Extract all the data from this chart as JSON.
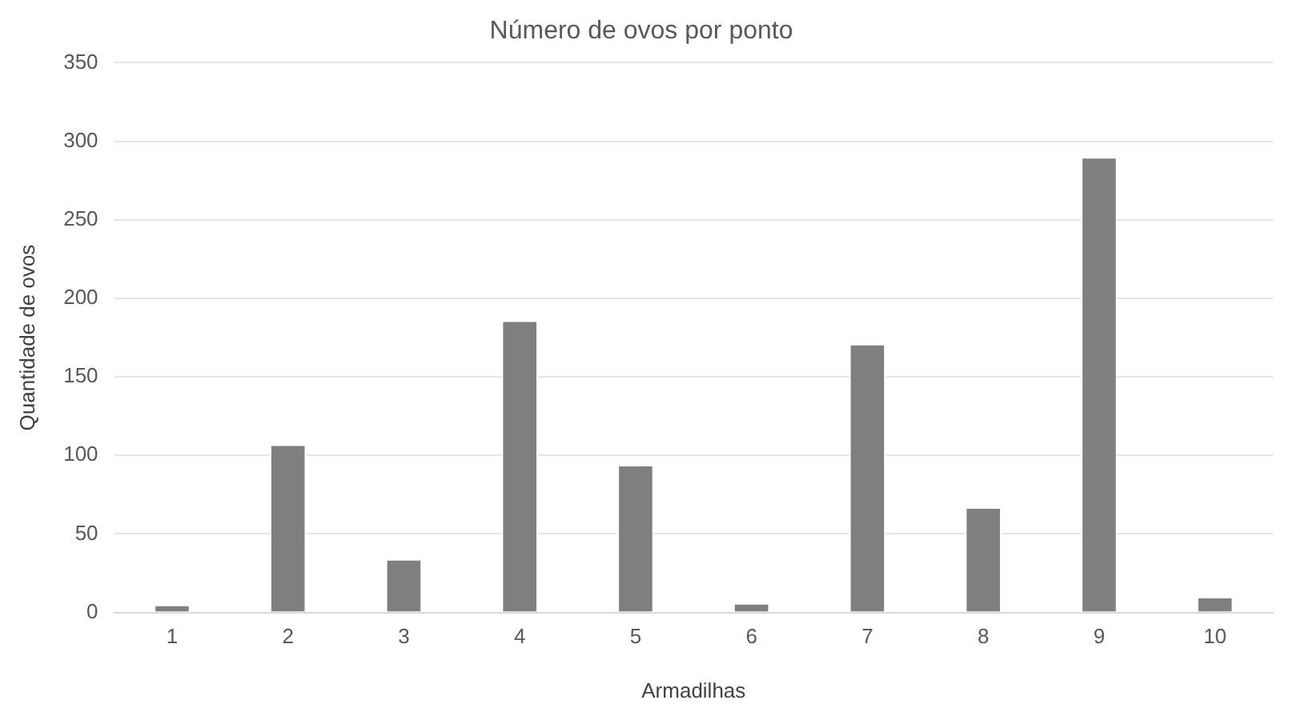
{
  "chart_data": {
    "type": "bar",
    "title": "Número de ovos por ponto",
    "xlabel": "Armadilhas",
    "ylabel": "Quantidade de ovos",
    "categories": [
      "1",
      "2",
      "3",
      "4",
      "5",
      "6",
      "7",
      "8",
      "9",
      "10"
    ],
    "values": [
      5,
      107,
      34,
      186,
      94,
      6,
      171,
      67,
      290,
      10
    ],
    "color": "#7f7f7f",
    "ylim": [
      0,
      350
    ],
    "yticks": [
      0,
      50,
      100,
      150,
      200,
      250,
      300,
      350
    ],
    "grid": "y",
    "legend": false
  }
}
